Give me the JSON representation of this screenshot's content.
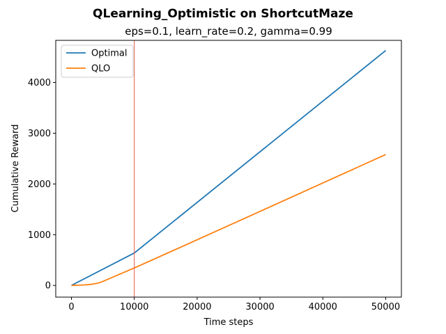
{
  "chart_data": {
    "type": "line",
    "title": "QLearning_Optimistic on ShortcutMaze",
    "subtitle": "eps=0.1, learn_rate=0.2, gamma=0.99",
    "xlabel": "Time steps",
    "ylabel": "Cumulative Reward",
    "xlim": [
      -2500,
      52500
    ],
    "ylim": [
      -230,
      4830
    ],
    "xticks": [
      0,
      10000,
      20000,
      30000,
      40000,
      50000
    ],
    "yticks": [
      0,
      1000,
      2000,
      3000,
      4000
    ],
    "grid": false,
    "legend_position": "top-left",
    "vline": {
      "x": 10000,
      "color": "#e8584a"
    },
    "series": [
      {
        "name": "Optimal",
        "color": "#1f77b4",
        "x": [
          0,
          10000,
          50000
        ],
        "y": [
          0,
          640,
          4630
        ]
      },
      {
        "name": "QLO",
        "color": "#ff7f0e",
        "x": [
          0,
          1000,
          2000,
          3000,
          4000,
          4500,
          5000,
          10000,
          20000,
          30000,
          40000,
          50000
        ],
        "y": [
          0,
          5,
          10,
          20,
          40,
          55,
          80,
          345,
          900,
          1460,
          2020,
          2580
        ]
      }
    ]
  }
}
